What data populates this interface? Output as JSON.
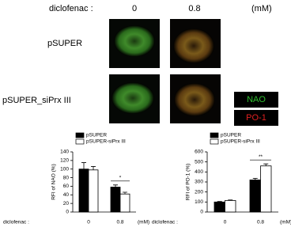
{
  "figure": {
    "treatment_label": "diclofenac :",
    "doses": [
      "0",
      "0.8"
    ],
    "dose_unit": "(mM)",
    "rows": [
      "pSUPER",
      "pSUPER_siPrx III"
    ],
    "stains": [
      {
        "label": "NAO",
        "color": "#2fbf2f"
      },
      {
        "label": "PO-1",
        "color": "#e02020"
      }
    ]
  },
  "chart_data": [
    {
      "type": "bar",
      "y_label": "RFI of NAO (%)",
      "x_label": "diclofenac :",
      "x_unit": "(mM)",
      "categories": [
        "0",
        "0.8"
      ],
      "series": [
        {
          "name": "pSUPER",
          "color": "#000000",
          "values": [
            100,
            58
          ],
          "errors": [
            15,
            5
          ]
        },
        {
          "name": "pSUPER-siPrx III",
          "color": "#ffffff",
          "values": [
            98,
            42
          ],
          "errors": [
            8,
            4
          ]
        }
      ],
      "ylim": [
        0,
        140
      ],
      "yticks": [
        0,
        20,
        40,
        60,
        80,
        100,
        120,
        140
      ],
      "annotation": "*",
      "annotation_category": 1
    },
    {
      "type": "bar",
      "y_label": "RFI of PO-1 (%)",
      "x_label": "diclofenac :",
      "x_unit": "(mM)",
      "categories": [
        "0",
        "0.8"
      ],
      "series": [
        {
          "name": "pSUPER",
          "color": "#000000",
          "values": [
            100,
            320
          ],
          "errors": [
            5,
            15
          ]
        },
        {
          "name": "pSUPER-siPrx III",
          "color": "#ffffff",
          "values": [
            115,
            460
          ],
          "errors": [
            5,
            20
          ]
        }
      ],
      "ylim": [
        0,
        600
      ],
      "yticks": [
        0,
        100,
        200,
        300,
        400,
        500,
        600
      ],
      "annotation": "**",
      "annotation_category": 1
    }
  ]
}
